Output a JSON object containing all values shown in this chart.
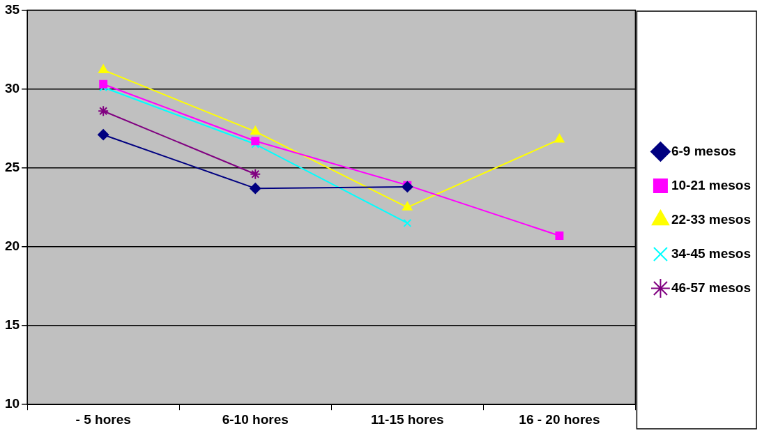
{
  "chart_data": {
    "type": "line",
    "categories": [
      "- 5 hores",
      "6-10 hores",
      "11-15 hores",
      "16 - 20 hores"
    ],
    "series": [
      {
        "name": "6-9 mesos",
        "color": "#000080",
        "marker": "diamond",
        "values": [
          27.1,
          23.7,
          23.8,
          null
        ]
      },
      {
        "name": "10-21 mesos",
        "color": "#ff00ff",
        "marker": "square",
        "values": [
          30.3,
          26.7,
          23.9,
          20.7
        ]
      },
      {
        "name": "22-33 mesos",
        "color": "#ffff00",
        "marker": "triangle",
        "values": [
          31.2,
          27.3,
          22.5,
          26.8
        ]
      },
      {
        "name": "34-45 mesos",
        "color": "#00ffff",
        "marker": "cross",
        "values": [
          30.1,
          26.5,
          21.5,
          null
        ]
      },
      {
        "name": "46-57 mesos",
        "color": "#800080",
        "marker": "cross",
        "values": [
          28.6,
          24.6,
          null,
          null
        ]
      }
    ],
    "ylim": [
      10,
      35
    ],
    "yticks": [
      10,
      15,
      20,
      25,
      30,
      35
    ],
    "grid": "y",
    "legend": "right",
    "line_style": "solid"
  }
}
